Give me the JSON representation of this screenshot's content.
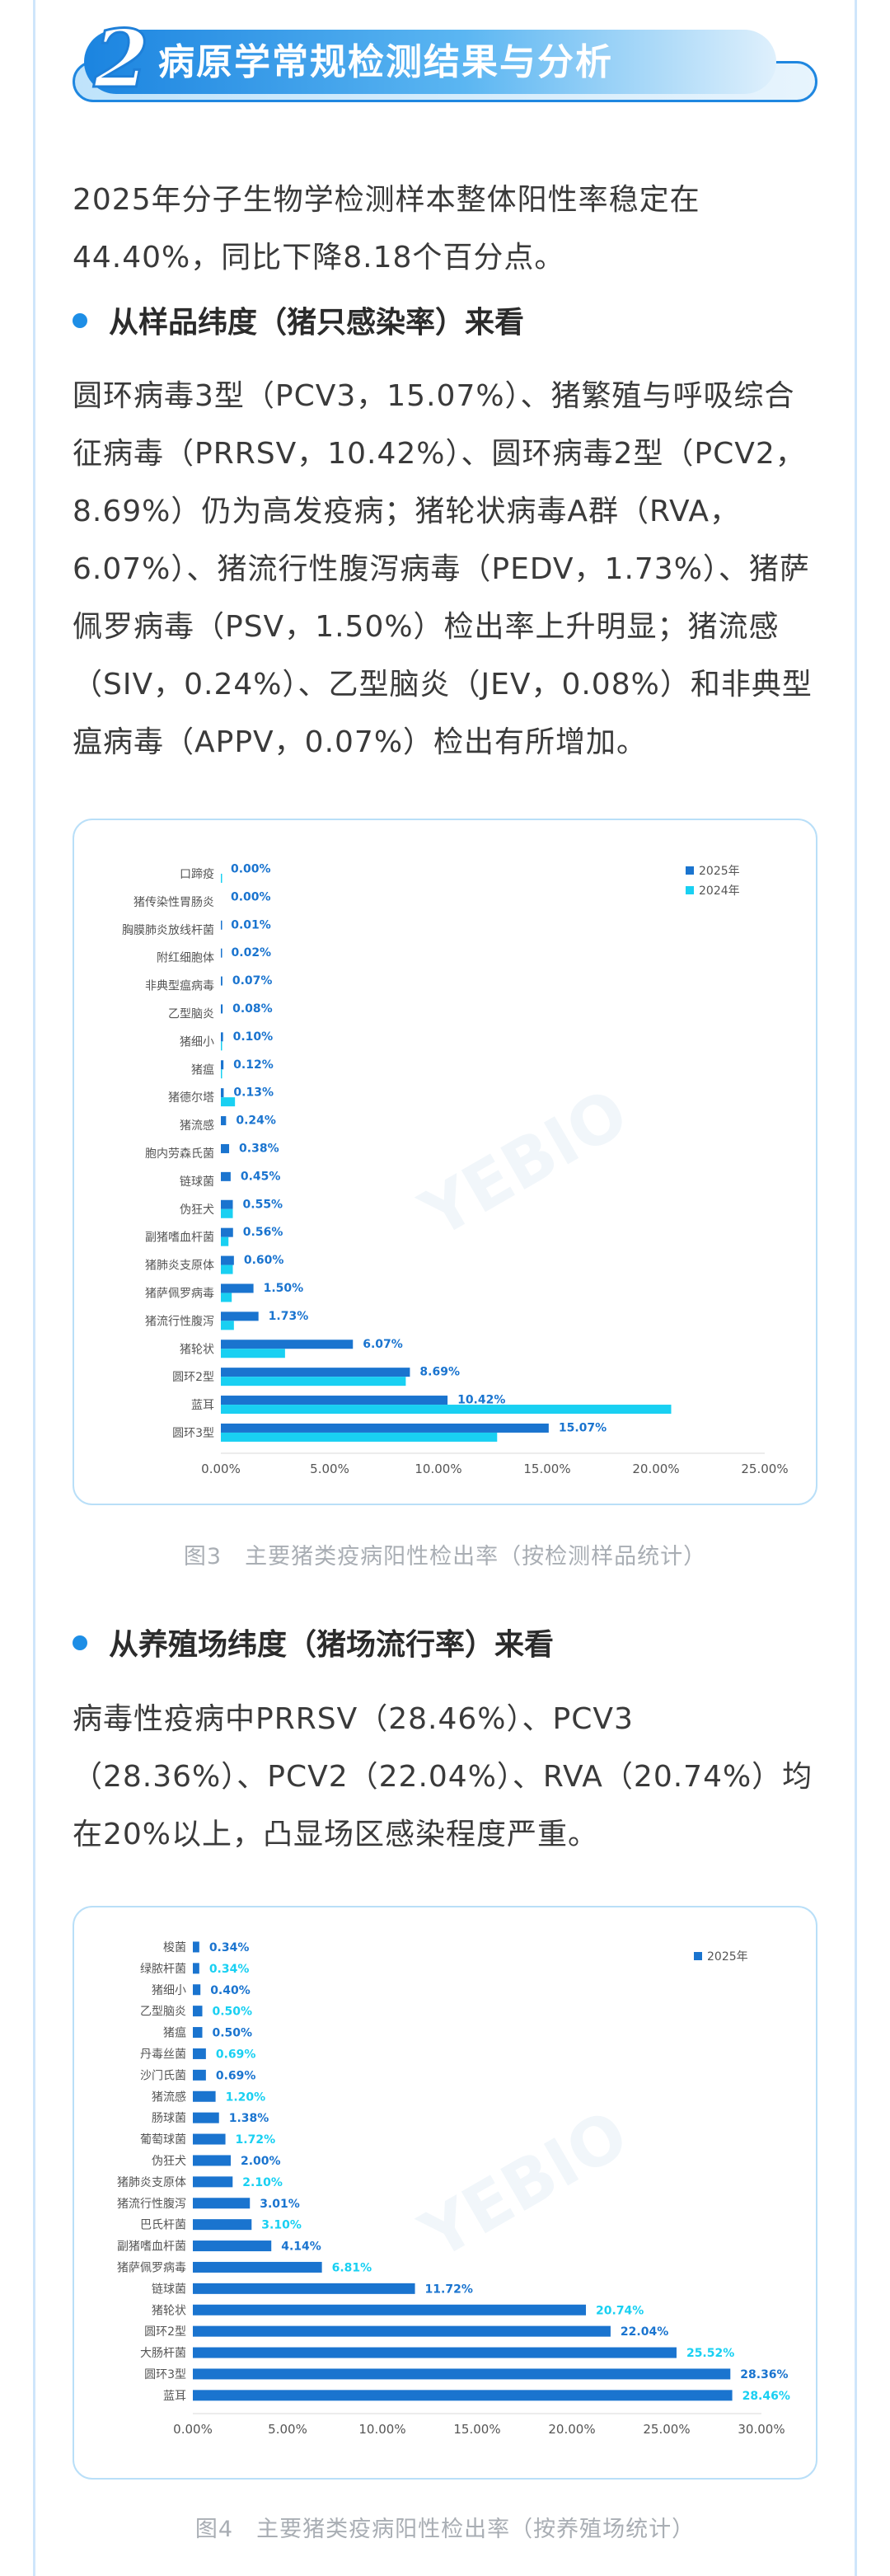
{
  "section": {
    "number": "2",
    "title": "病原学常规检测结果与分析"
  },
  "intro": "2025年分子生物学检测样本整体阳性率稳定在44.40%，同比下降8.18个百分点。",
  "bullet1": "从样品纬度（猪只感染率）来看",
  "para1": "圆环病毒3型（PCV3，15.07%）、猪繁殖与呼吸综合征病毒（PRRSV，10.42%）、圆环病毒2型（PCV2，8.69%）仍为高发疫病；猪轮状病毒A群（RVA，6.07%）、猪流行性腹泻病毒（PEDV，1.73%）、猪萨佩罗病毒（PSV，1.50%）检出率上升明显；猪流感（SIV，0.24%）、乙型脑炎（JEV，0.08%）和非典型瘟病毒（APPV，0.07%）检出有所增加。",
  "caption1": "图3　主要猪类疫病阳性检出率（按检测样品统计）",
  "bullet2": "从养殖场纬度（猪场流行率）来看",
  "para2": "病毒性疫病中PRRSV（28.46%）、PCV3（28.36%）、PCV2（22.04%）、RVA（20.74%）均在20%以上，凸显场区感染程度严重。",
  "caption2": "图4　主要猪类疫病阳性检出率（按养殖场统计）",
  "watermark": "YEBIO",
  "colors": {
    "series2025": "#1a74cf",
    "series2024": "#19d0f2",
    "labelText": "#1a74cf",
    "accent": "#1d8ee6"
  },
  "chart_data": [
    {
      "type": "bar",
      "orientation": "horizontal",
      "categories": [
        "口蹄疫",
        "猪传染性胃肠炎",
        "胸膜肺炎放线杆菌",
        "附红细胞体",
        "非典型瘟病毒",
        "乙型脑炎",
        "猪细小",
        "猪瘟",
        "猪德尔塔",
        "猪流感",
        "胞内劳森氏菌",
        "链球菌",
        "伪狂犬",
        "副猪嗜血杆菌",
        "猪肺炎支原体",
        "猪萨佩罗病毒",
        "猪流行性腹泻",
        "猪轮状",
        "圆环2型",
        "蓝耳",
        "圆环3型"
      ],
      "series": [
        {
          "name": "2025年",
          "values": [
            0.0,
            0.0,
            0.01,
            0.02,
            0.07,
            0.08,
            0.1,
            0.12,
            0.13,
            0.24,
            0.38,
            0.45,
            0.55,
            0.56,
            0.6,
            1.5,
            1.73,
            6.07,
            8.69,
            10.42,
            15.07
          ]
        },
        {
          "name": "2024年",
          "values": [
            0.05,
            0.0,
            0.0,
            0.0,
            0.0,
            0.0,
            0.05,
            0.05,
            0.65,
            0.0,
            0.0,
            0.0,
            0.55,
            0.35,
            0.55,
            0.5,
            0.6,
            2.95,
            8.5,
            20.7,
            12.7
          ]
        }
      ],
      "data_labels": [
        "0.00%",
        "0.00%",
        "0.01%",
        "0.02%",
        "0.07%",
        "0.08%",
        "0.10%",
        "0.12%",
        "0.13%",
        "0.24%",
        "0.38%",
        "0.45%",
        "0.55%",
        "0.56%",
        "0.60%",
        "1.50%",
        "1.73%",
        "6.07%",
        "8.69%",
        "10.42%",
        "15.07%"
      ],
      "xlim": [
        0,
        25
      ],
      "xticks": [
        "0.00%",
        "5.00%",
        "10.00%",
        "15.00%",
        "20.00%",
        "25.00%"
      ],
      "legend": "top-right",
      "grid": false
    },
    {
      "type": "bar",
      "orientation": "horizontal",
      "categories": [
        "梭菌",
        "绿脓杆菌",
        "猪细小",
        "乙型脑炎",
        "猪瘟",
        "丹毒丝菌",
        "沙门氏菌",
        "猪流感",
        "肠球菌",
        "葡萄球菌",
        "伪狂犬",
        "猪肺炎支原体",
        "猪流行性腹泻",
        "巴氏杆菌",
        "副猪嗜血杆菌",
        "猪萨佩罗病毒",
        "链球菌",
        "猪轮状",
        "圆环2型",
        "大肠杆菌",
        "圆环3型",
        "蓝耳"
      ],
      "series": [
        {
          "name": "2025年",
          "values": [
            0.34,
            0.34,
            0.4,
            0.5,
            0.5,
            0.69,
            0.69,
            1.2,
            1.38,
            1.72,
            2.0,
            2.1,
            3.01,
            3.1,
            4.14,
            6.81,
            11.72,
            20.74,
            22.04,
            25.52,
            28.36,
            28.46
          ]
        }
      ],
      "data_labels": [
        "0.34%",
        "0.34%",
        "0.40%",
        "0.50%",
        "0.50%",
        "0.69%",
        "0.69%",
        "1.20%",
        "1.38%",
        "1.72%",
        "2.00%",
        "2.10%",
        "3.01%",
        "3.10%",
        "4.14%",
        "6.81%",
        "11.72%",
        "20.74%",
        "22.04%",
        "25.52%",
        "28.36%",
        "28.46%"
      ],
      "xlim": [
        0,
        30
      ],
      "xticks": [
        "0.00%",
        "5.00%",
        "10.00%",
        "15.00%",
        "20.00%",
        "25.00%",
        "30.00%"
      ],
      "legend": "top-right",
      "grid": false
    }
  ]
}
